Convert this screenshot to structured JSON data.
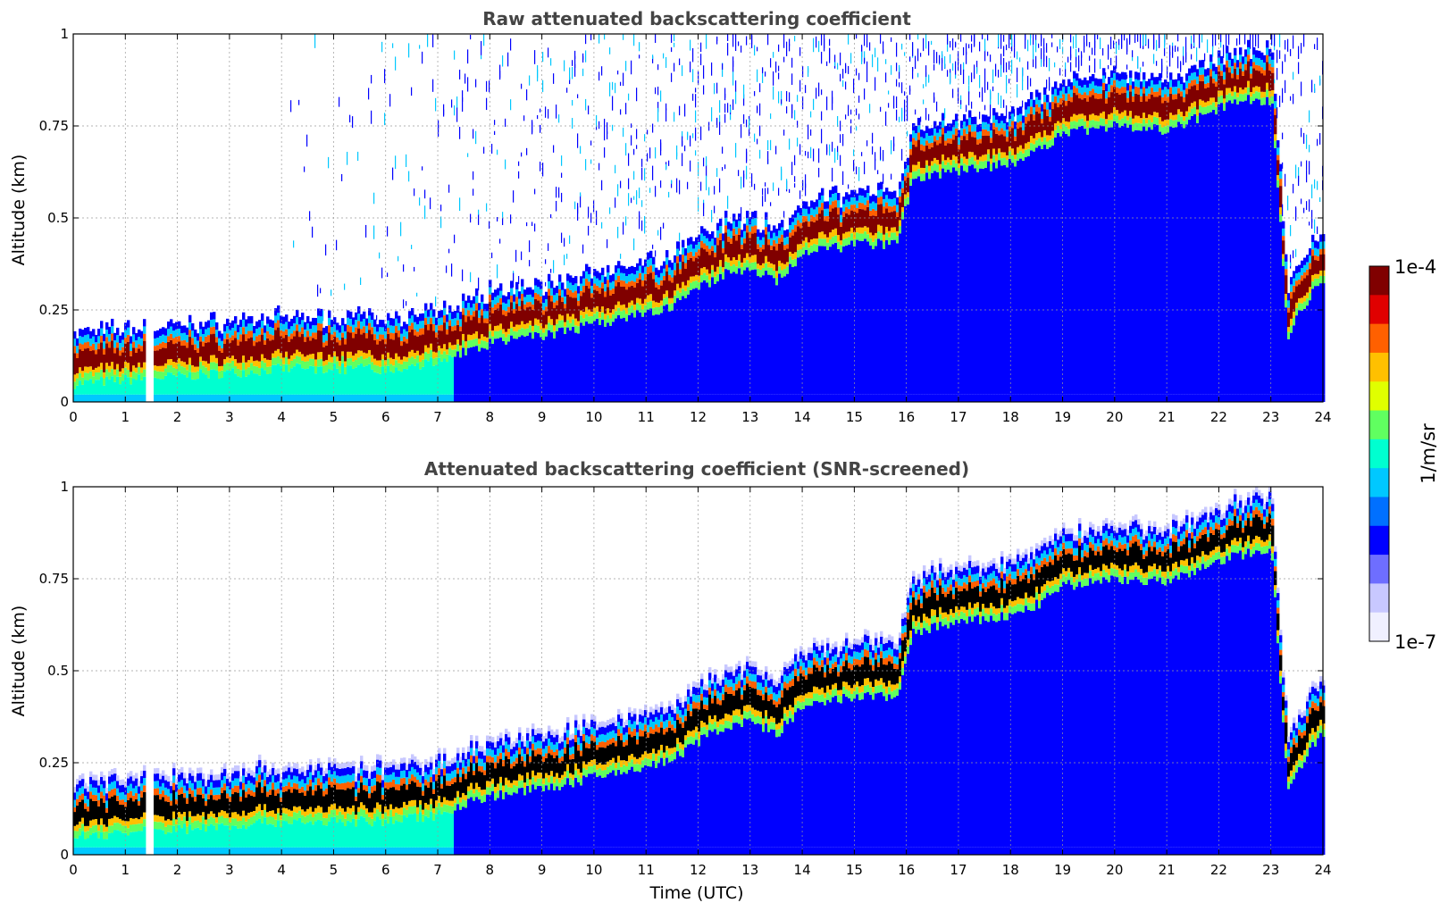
{
  "chart_data": [
    {
      "type": "heatmap",
      "title": "Raw attenuated backscattering coefficient",
      "xlabel": "",
      "ylabel": "Altitude (km)",
      "xlim": [
        0,
        24
      ],
      "ylim": [
        0,
        1
      ],
      "xticks": [
        "0",
        "1",
        "2",
        "3",
        "4",
        "5",
        "6",
        "7",
        "8",
        "9",
        "10",
        "11",
        "12",
        "13",
        "14",
        "15",
        "16",
        "17",
        "18",
        "19",
        "20",
        "21",
        "22",
        "23",
        "24"
      ],
      "yticks": [
        "0",
        "0.25",
        "0.5",
        "0.75",
        "1"
      ],
      "grid": true,
      "background_noise": true,
      "cloud_base_km": {
        "time_utc": [
          0,
          1,
          2,
          3,
          4,
          5,
          6,
          7,
          7.5,
          8,
          9,
          10,
          11,
          11.5,
          12,
          12.5,
          13,
          13.5,
          14,
          15,
          15.8,
          16.1,
          16.5,
          17,
          17.5,
          18,
          18.5,
          19,
          19.5,
          20,
          21,
          21.7,
          22,
          22.5,
          23,
          23.3,
          23.7,
          24
        ],
        "altitude_km": [
          0.07,
          0.08,
          0.09,
          0.1,
          0.11,
          0.11,
          0.11,
          0.13,
          0.16,
          0.18,
          0.2,
          0.23,
          0.26,
          0.28,
          0.33,
          0.37,
          0.38,
          0.35,
          0.42,
          0.45,
          0.45,
          0.62,
          0.64,
          0.65,
          0.66,
          0.67,
          0.7,
          0.75,
          0.76,
          0.77,
          0.76,
          0.8,
          0.82,
          0.84,
          0.84,
          0.2,
          0.3,
          0.35
        ]
      },
      "gaps_utc": [
        1.45
      ]
    },
    {
      "type": "heatmap",
      "title": "Attenuated backscattering coefficient (SNR-screened)",
      "xlabel": "Time (UTC)",
      "ylabel": "Altitude (km)",
      "xlim": [
        0,
        24
      ],
      "ylim": [
        0,
        1
      ],
      "xticks": [
        "0",
        "1",
        "2",
        "3",
        "4",
        "5",
        "6",
        "7",
        "8",
        "9",
        "10",
        "11",
        "12",
        "13",
        "14",
        "15",
        "16",
        "17",
        "18",
        "19",
        "20",
        "21",
        "22",
        "23",
        "24"
      ],
      "yticks": [
        "0",
        "0.25",
        "0.5",
        "0.75",
        "1"
      ],
      "grid": true,
      "background_noise": false,
      "saturated_color": "#000000",
      "gaps_utc": [
        1.45
      ]
    }
  ],
  "colorbar": {
    "label": "1/m/sr",
    "max_label": "1e-4",
    "min_label": "1e-7",
    "scale": "log",
    "range": [
      1e-07,
      0.0001
    ],
    "colors": [
      "#f0f0ff",
      "#c8c8ff",
      "#6e6eff",
      "#0000ff",
      "#0070ff",
      "#00c8ff",
      "#00ffd0",
      "#60ff60",
      "#e0ff00",
      "#ffc000",
      "#ff6000",
      "#e00000",
      "#800000"
    ]
  }
}
